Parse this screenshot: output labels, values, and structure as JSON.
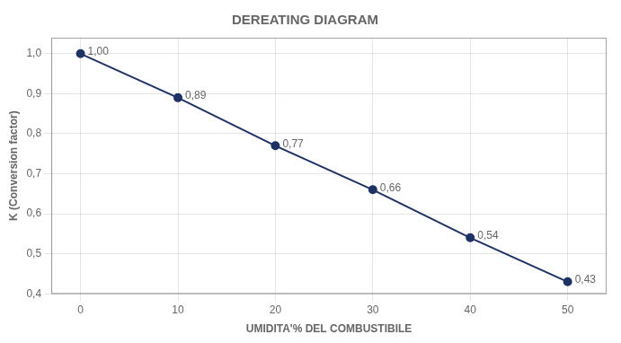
{
  "chart_data": {
    "type": "line",
    "title": "DEREATING DIAGRAM",
    "xlabel": "UMIDITA'% DEL COMBUSTIBILE",
    "ylabel": "K (Conversion factor)",
    "x": [
      0,
      10,
      20,
      30,
      40,
      50
    ],
    "values": [
      1.0,
      0.89,
      0.77,
      0.66,
      0.54,
      0.43
    ],
    "value_labels": [
      "1,00",
      "0,89",
      "0,77",
      "0,66",
      "0,54",
      "0,43"
    ],
    "color": "#1F3264",
    "marker": "circle",
    "xlim": [
      -3,
      54
    ],
    "xticks": [
      0,
      10,
      20,
      30,
      40,
      50
    ],
    "ylim": [
      0.4,
      1.04
    ],
    "yticks": [
      {
        "value": 0.4,
        "label": "0,4"
      },
      {
        "value": 0.5,
        "label": "0,5"
      },
      {
        "value": 0.6,
        "label": "0,6"
      },
      {
        "value": 0.7,
        "label": "0,7"
      },
      {
        "value": 0.8,
        "label": "0,8"
      },
      {
        "value": 0.9,
        "label": "0,9"
      },
      {
        "value": 1.0,
        "label": "1,0"
      }
    ],
    "grid": true,
    "data_labels": true
  }
}
